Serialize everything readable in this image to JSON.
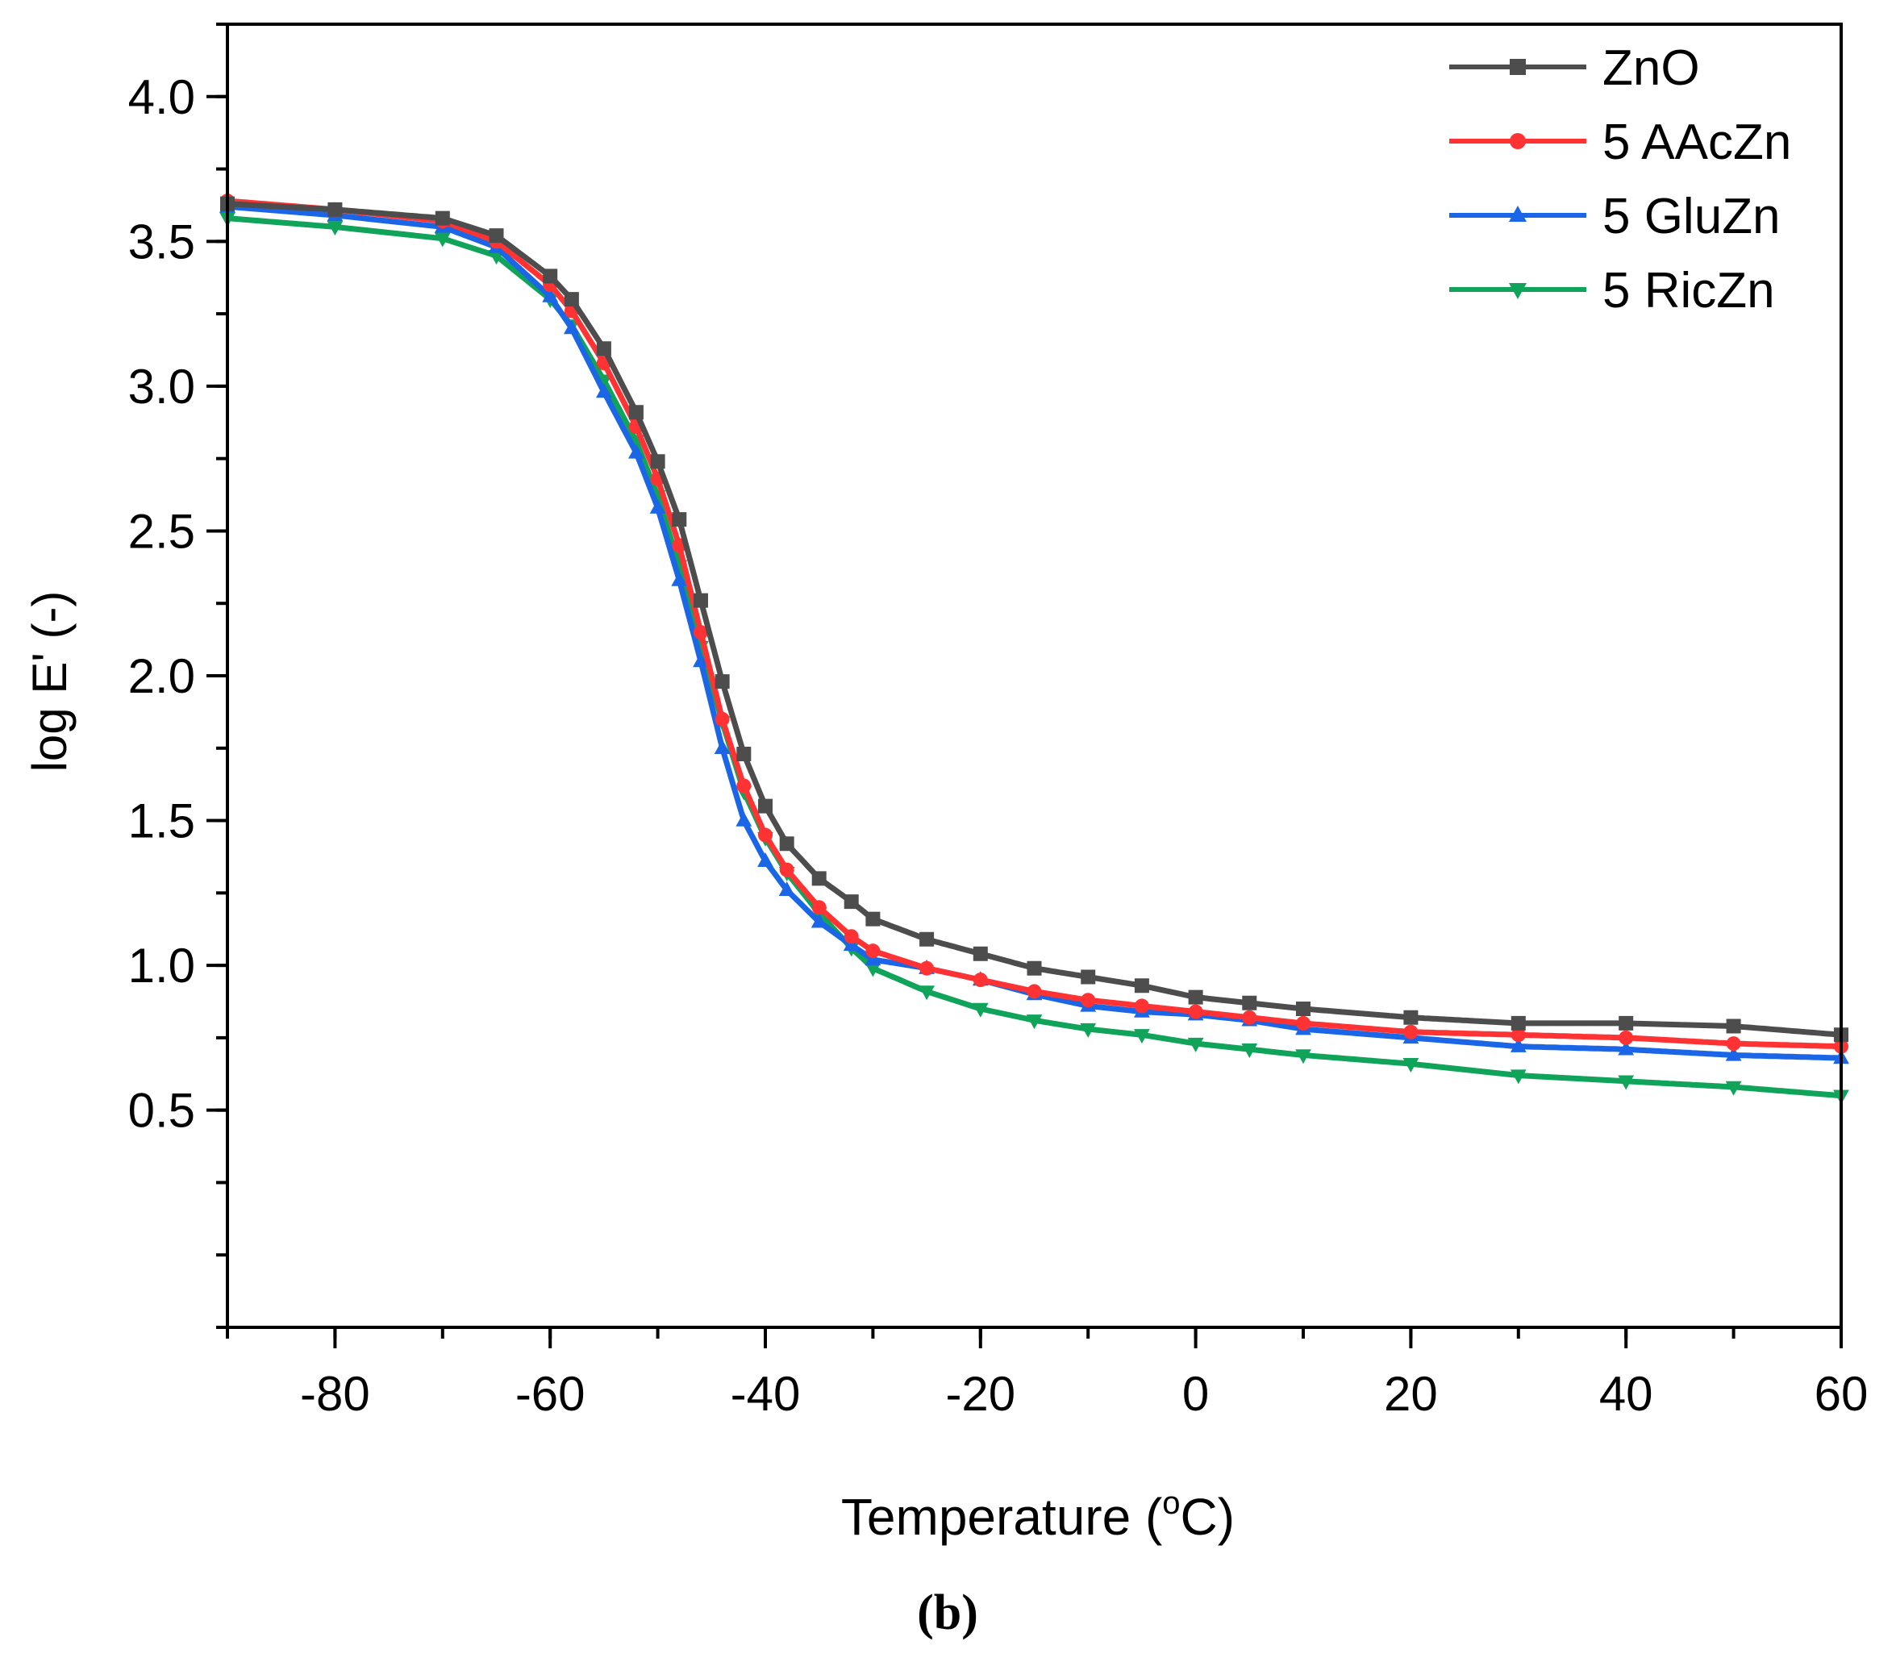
{
  "chart_data": {
    "type": "line",
    "panel_label": "b",
    "xlabel": "Temperature (°C)",
    "xlabel_parts": [
      "Temperature (",
      "o",
      "C)"
    ],
    "ylabel": "log E' (-)",
    "xlim": [
      -90,
      60
    ],
    "ylim": [
      -0.25,
      4.25
    ],
    "x_major_ticks": [
      -80,
      -60,
      -40,
      -20,
      0,
      20,
      40,
      60
    ],
    "x_minor_step": 10,
    "y_major_ticks": [
      0.5,
      1.0,
      1.5,
      2.0,
      2.5,
      3.0,
      3.5,
      4.0
    ],
    "y_minor_step": 0.25,
    "legend_position": "top-right",
    "series": [
      {
        "name": "ZnO",
        "color": "#4d4d4d",
        "marker": "square",
        "points": [
          [
            -90,
            3.63
          ],
          [
            -80,
            3.61
          ],
          [
            -70,
            3.58
          ],
          [
            -65,
            3.52
          ],
          [
            -60,
            3.38
          ],
          [
            -58,
            3.3
          ],
          [
            -55,
            3.13
          ],
          [
            -52,
            2.91
          ],
          [
            -50,
            2.74
          ],
          [
            -48,
            2.54
          ],
          [
            -46,
            2.26
          ],
          [
            -44,
            1.98
          ],
          [
            -42,
            1.73
          ],
          [
            -40,
            1.55
          ],
          [
            -38,
            1.42
          ],
          [
            -35,
            1.3
          ],
          [
            -32,
            1.22
          ],
          [
            -30,
            1.16
          ],
          [
            -25,
            1.09
          ],
          [
            -20,
            1.04
          ],
          [
            -15,
            0.99
          ],
          [
            -10,
            0.96
          ],
          [
            -5,
            0.93
          ],
          [
            0,
            0.89
          ],
          [
            5,
            0.87
          ],
          [
            10,
            0.85
          ],
          [
            20,
            0.82
          ],
          [
            30,
            0.8
          ],
          [
            40,
            0.8
          ],
          [
            50,
            0.79
          ],
          [
            60,
            0.76
          ]
        ]
      },
      {
        "name": "5 AAcZn",
        "color": "#ff3333",
        "marker": "circle",
        "points": [
          [
            -90,
            3.64
          ],
          [
            -80,
            3.61
          ],
          [
            -70,
            3.57
          ],
          [
            -65,
            3.5
          ],
          [
            -60,
            3.35
          ],
          [
            -58,
            3.26
          ],
          [
            -55,
            3.08
          ],
          [
            -52,
            2.86
          ],
          [
            -50,
            2.68
          ],
          [
            -48,
            2.45
          ],
          [
            -46,
            2.15
          ],
          [
            -44,
            1.85
          ],
          [
            -42,
            1.62
          ],
          [
            -40,
            1.45
          ],
          [
            -38,
            1.33
          ],
          [
            -35,
            1.2
          ],
          [
            -32,
            1.1
          ],
          [
            -30,
            1.05
          ],
          [
            -25,
            0.99
          ],
          [
            -20,
            0.95
          ],
          [
            -15,
            0.91
          ],
          [
            -10,
            0.88
          ],
          [
            -5,
            0.86
          ],
          [
            0,
            0.84
          ],
          [
            5,
            0.82
          ],
          [
            10,
            0.8
          ],
          [
            20,
            0.77
          ],
          [
            30,
            0.76
          ],
          [
            40,
            0.75
          ],
          [
            50,
            0.73
          ],
          [
            60,
            0.72
          ]
        ]
      },
      {
        "name": "5 GluZn",
        "color": "#1a66e6",
        "marker": "triangle-up",
        "points": [
          [
            -90,
            3.62
          ],
          [
            -80,
            3.59
          ],
          [
            -70,
            3.55
          ],
          [
            -65,
            3.48
          ],
          [
            -60,
            3.31
          ],
          [
            -58,
            3.2
          ],
          [
            -55,
            2.98
          ],
          [
            -52,
            2.77
          ],
          [
            -50,
            2.58
          ],
          [
            -48,
            2.33
          ],
          [
            -46,
            2.05
          ],
          [
            -44,
            1.75
          ],
          [
            -42,
            1.5
          ],
          [
            -40,
            1.36
          ],
          [
            -38,
            1.26
          ],
          [
            -35,
            1.15
          ],
          [
            -32,
            1.07
          ],
          [
            -30,
            1.02
          ],
          [
            -25,
            0.99
          ],
          [
            -20,
            0.95
          ],
          [
            -15,
            0.9
          ],
          [
            -10,
            0.86
          ],
          [
            -5,
            0.84
          ],
          [
            0,
            0.83
          ],
          [
            5,
            0.81
          ],
          [
            10,
            0.78
          ],
          [
            20,
            0.75
          ],
          [
            30,
            0.72
          ],
          [
            40,
            0.71
          ],
          [
            50,
            0.69
          ],
          [
            60,
            0.68
          ]
        ]
      },
      {
        "name": "5 RicZn",
        "color": "#10a35a",
        "marker": "triangle-down",
        "points": [
          [
            -90,
            3.58
          ],
          [
            -80,
            3.55
          ],
          [
            -70,
            3.51
          ],
          [
            -65,
            3.45
          ],
          [
            -60,
            3.3
          ],
          [
            -58,
            3.21
          ],
          [
            -55,
            3.02
          ],
          [
            -52,
            2.81
          ],
          [
            -50,
            2.62
          ],
          [
            -48,
            2.38
          ],
          [
            -46,
            2.1
          ],
          [
            -44,
            1.84
          ],
          [
            -42,
            1.6
          ],
          [
            -40,
            1.44
          ],
          [
            -38,
            1.32
          ],
          [
            -35,
            1.18
          ],
          [
            -32,
            1.06
          ],
          [
            -30,
            0.99
          ],
          [
            -25,
            0.91
          ],
          [
            -20,
            0.85
          ],
          [
            -15,
            0.81
          ],
          [
            -10,
            0.78
          ],
          [
            -5,
            0.76
          ],
          [
            0,
            0.73
          ],
          [
            5,
            0.71
          ],
          [
            10,
            0.69
          ],
          [
            20,
            0.66
          ],
          [
            30,
            0.62
          ],
          [
            40,
            0.6
          ],
          [
            50,
            0.58
          ],
          [
            60,
            0.55
          ]
        ]
      }
    ]
  }
}
